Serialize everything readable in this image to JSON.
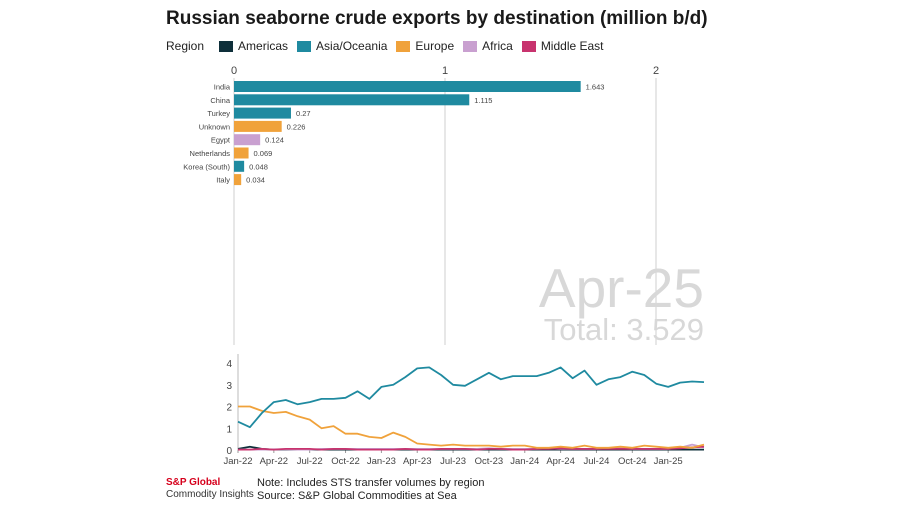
{
  "title": "Russian seaborne crude exports by destination (million b/d)",
  "legend": {
    "label": "Region",
    "items": [
      {
        "name": "Americas",
        "color": "#0e2f3a"
      },
      {
        "name": "Asia/Oceania",
        "color": "#1f8aa0"
      },
      {
        "name": "Europe",
        "color": "#f0a23b"
      },
      {
        "name": "Africa",
        "color": "#c9a0d0"
      },
      {
        "name": "Middle East",
        "color": "#c8336e"
      }
    ]
  },
  "overlay": {
    "date": "Apr-25",
    "total_label": "Total: 3.529"
  },
  "footer": {
    "brand_line1": "S&P Global",
    "brand_line2": "Commodity Insights",
    "note": "Note: Includes STS transfer volumes by region",
    "source": "Source: S&P Global Commodities at Sea"
  },
  "chart_data": [
    {
      "type": "bar",
      "orientation": "horizontal",
      "categories": [
        "India",
        "China",
        "Turkey",
        "Unknown",
        "Egypt",
        "Netherlands",
        "Korea (South)",
        "Italy"
      ],
      "values": [
        1.643,
        1.115,
        0.27,
        0.226,
        0.124,
        0.069,
        0.048,
        0.034
      ],
      "value_labels": [
        "1.643",
        "1.115",
        "0.27",
        "0.226",
        "0.124",
        "0.069",
        "0.048",
        "0.034"
      ],
      "regions": [
        "Asia/Oceania",
        "Asia/Oceania",
        "Asia/Oceania",
        "Europe",
        "Africa",
        "Europe",
        "Asia/Oceania",
        "Europe"
      ],
      "xlim": [
        0,
        2
      ],
      "xticks": [
        "0",
        "1",
        "2"
      ],
      "grid": true
    },
    {
      "type": "line",
      "x": [
        "Jan-22",
        "Feb-22",
        "Mar-22",
        "Apr-22",
        "May-22",
        "Jun-22",
        "Jul-22",
        "Aug-22",
        "Sep-22",
        "Oct-22",
        "Nov-22",
        "Dec-22",
        "Jan-23",
        "Feb-23",
        "Mar-23",
        "Apr-23",
        "May-23",
        "Jun-23",
        "Jul-23",
        "Aug-23",
        "Sep-23",
        "Oct-23",
        "Nov-23",
        "Dec-23",
        "Jan-24",
        "Feb-24",
        "Mar-24",
        "Apr-24",
        "May-24",
        "Jun-24",
        "Jul-24",
        "Aug-24",
        "Sep-24",
        "Oct-24",
        "Nov-24",
        "Dec-24",
        "Jan-25",
        "Feb-25",
        "Mar-25",
        "Apr-25"
      ],
      "xticks": [
        "Jan-22",
        "Apr-22",
        "Jul-22",
        "Oct-22",
        "Jan-23",
        "Apr-23",
        "Jul-23",
        "Oct-23",
        "Jan-24",
        "Apr-24",
        "Jul-24",
        "Oct-24",
        "Jan-25"
      ],
      "ylim": [
        0,
        4
      ],
      "yticks": [
        "0",
        "1",
        "2",
        "3",
        "4"
      ],
      "series": [
        {
          "name": "Asia/Oceania",
          "values": [
            1.3,
            1.05,
            1.7,
            2.2,
            2.3,
            2.1,
            2.2,
            2.35,
            2.35,
            2.4,
            2.7,
            2.35,
            2.9,
            3.0,
            3.35,
            3.75,
            3.8,
            3.45,
            3.0,
            2.95,
            3.25,
            3.55,
            3.25,
            3.4,
            3.4,
            3.4,
            3.55,
            3.8,
            3.3,
            3.65,
            3.0,
            3.25,
            3.35,
            3.6,
            3.45,
            3.05,
            2.9,
            3.1,
            3.15,
            3.12
          ]
        },
        {
          "name": "Europe",
          "values": [
            2.0,
            2.0,
            1.8,
            1.7,
            1.75,
            1.55,
            1.4,
            1.0,
            1.1,
            0.75,
            0.75,
            0.6,
            0.55,
            0.8,
            0.6,
            0.3,
            0.25,
            0.2,
            0.25,
            0.2,
            0.2,
            0.2,
            0.15,
            0.2,
            0.2,
            0.1,
            0.1,
            0.15,
            0.1,
            0.2,
            0.1,
            0.1,
            0.15,
            0.1,
            0.2,
            0.15,
            0.1,
            0.15,
            0.1,
            0.25
          ]
        },
        {
          "name": "Americas",
          "values": [
            0.05,
            0.15,
            0.05,
            0.02,
            0.02,
            0.02,
            0.02,
            0.02,
            0.02,
            0.02,
            0.02,
            0.02,
            0.02,
            0.02,
            0.02,
            0.02,
            0.02,
            0.02,
            0.02,
            0.02,
            0.02,
            0.02,
            0.02,
            0.02,
            0.02,
            0.02,
            0.02,
            0.02,
            0.02,
            0.02,
            0.02,
            0.02,
            0.02,
            0.02,
            0.02,
            0.02,
            0.02,
            0.02,
            0.02,
            0.02
          ]
        },
        {
          "name": "Africa",
          "values": [
            0.02,
            0.02,
            0.02,
            0.03,
            0.03,
            0.02,
            0.02,
            0.05,
            0.05,
            0.05,
            0.05,
            0.05,
            0.05,
            0.05,
            0.05,
            0.05,
            0.05,
            0.05,
            0.05,
            0.05,
            0.05,
            0.08,
            0.05,
            0.05,
            0.05,
            0.05,
            0.08,
            0.05,
            0.05,
            0.05,
            0.05,
            0.08,
            0.08,
            0.05,
            0.05,
            0.05,
            0.05,
            0.1,
            0.25,
            0.12
          ]
        },
        {
          "name": "Middle East",
          "values": [
            0.02,
            0.02,
            0.05,
            0.02,
            0.05,
            0.05,
            0.05,
            0.02,
            0.05,
            0.05,
            0.02,
            0.02,
            0.02,
            0.02,
            0.05,
            0.02,
            0.02,
            0.05,
            0.05,
            0.05,
            0.02,
            0.05,
            0.05,
            0.02,
            0.02,
            0.05,
            0.05,
            0.08,
            0.05,
            0.05,
            0.05,
            0.05,
            0.05,
            0.05,
            0.05,
            0.05,
            0.05,
            0.08,
            0.12,
            0.15
          ]
        }
      ]
    }
  ]
}
